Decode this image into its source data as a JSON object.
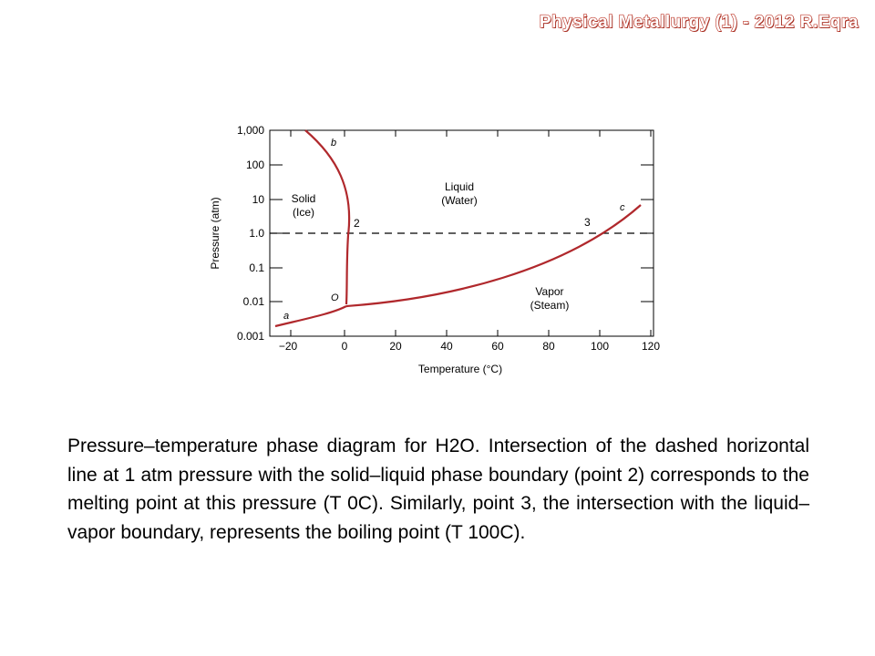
{
  "header": {
    "title": "Physical Metallurgy (1) - 2012 R.Eqra"
  },
  "diagram": {
    "x_axis": {
      "label": "Temperature (°C)",
      "ticks": [
        "−20",
        "0",
        "20",
        "40",
        "60",
        "80",
        "100",
        "120"
      ]
    },
    "y_axis": {
      "label": "Pressure (atm)",
      "ticks": [
        "0.001",
        "0.01",
        "0.1",
        "1.0",
        "10",
        "100",
        "1,000"
      ]
    },
    "regions": {
      "solid": [
        "Solid",
        "(Ice)"
      ],
      "liquid": [
        "Liquid",
        "(Water)"
      ],
      "vapor": [
        "Vapor",
        "(Steam)"
      ]
    },
    "point_labels": {
      "a": "a",
      "b": "b",
      "c": "c",
      "o": "O",
      "p2": "2",
      "p3": "3"
    },
    "curve_color": "#b0282c",
    "solid_liquid_boundary_endpoints": [
      {
        "temperature_c": -15,
        "pressure_atm": 1000
      },
      {
        "temperature_c": 0.01,
        "pressure_atm": 0.006
      }
    ],
    "liquid_vapor_boundary_endpoints": [
      {
        "temperature_c": 0.01,
        "pressure_atm": 0.006
      },
      {
        "temperature_c": 115,
        "pressure_atm": 5
      }
    ],
    "solid_vapor_boundary_endpoints": [
      {
        "temperature_c": -27,
        "pressure_atm": 0.0013
      },
      {
        "temperature_c": 0.01,
        "pressure_atm": 0.006
      }
    ],
    "dashed_line_pressure_atm": 1.0
  },
  "caption": {
    "text": "Pressure–temperature phase diagram for H2O. Intersection of the dashed horizontal line at 1 atm pressure with the solid–liquid phase boundary (point 2) corresponds to the melting point at this pressure (T  0C). Similarly, point 3, the intersection with the liquid–vapor boundary, represents the boiling point (T  100C)."
  }
}
